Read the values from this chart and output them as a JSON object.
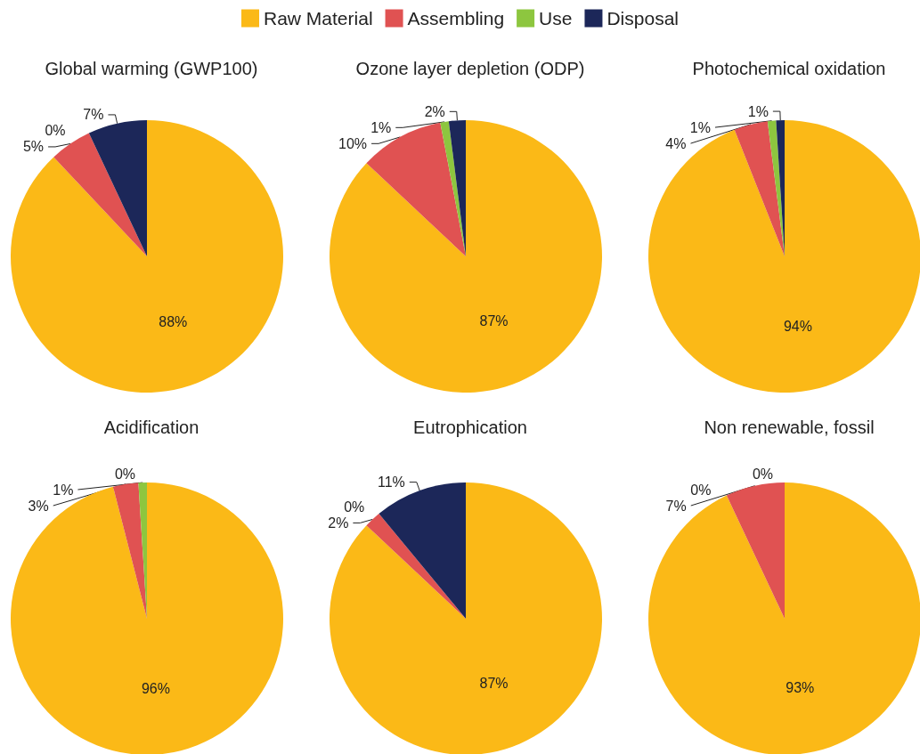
{
  "chart_data": [
    {
      "type": "pie",
      "title": "Global warming (GWP100)",
      "categories": [
        "Raw Material",
        "Assembling",
        "Use",
        "Disposal"
      ],
      "values": [
        88,
        5,
        0,
        7
      ],
      "value_labels": [
        "88%",
        "5%",
        "0%",
        "7%"
      ],
      "colors": [
        "#fbb917",
        "#e05252",
        "#8dc63f",
        "#1c2759"
      ],
      "legend": "top"
    },
    {
      "type": "pie",
      "title": "Ozone layer depletion (ODP)",
      "categories": [
        null,
        null,
        null,
        null
      ],
      "values": [
        87,
        10,
        1,
        2
      ],
      "value_labels": [
        "87%",
        "10%",
        "1%",
        "2%"
      ],
      "colors": [
        "#fbb917",
        "#e05252",
        "#8dc63f",
        "#1c2759"
      ]
    },
    {
      "type": "pie",
      "title": "Photochemical oxidation",
      "categories": [
        null,
        null,
        null,
        null
      ],
      "values": [
        94,
        4,
        1,
        1
      ],
      "value_labels": [
        "94%",
        "4%",
        "1%",
        "1%"
      ],
      "colors": [
        "#fbb917",
        "#e05252",
        "#8dc63f",
        "#1c2759"
      ]
    },
    {
      "type": "pie",
      "title": "Acidification",
      "categories": [
        null,
        null,
        null,
        null
      ],
      "values": [
        96,
        3,
        1,
        0
      ],
      "value_labels": [
        "96%",
        "3%",
        "1%",
        "0%"
      ],
      "colors": [
        "#fbb917",
        "#e05252",
        "#8dc63f",
        "#1c2759"
      ]
    },
    {
      "type": "pie",
      "title": "Eutrophication",
      "categories": [
        null,
        null,
        null,
        null
      ],
      "values": [
        87,
        2,
        0,
        11
      ],
      "value_labels": [
        "87%",
        "2%",
        "0%",
        "11%"
      ],
      "colors": [
        "#fbb917",
        "#e05252",
        "#8dc63f",
        "#1c2759"
      ]
    },
    {
      "type": "pie",
      "title": "Non renewable, fossil",
      "categories": [
        null,
        null,
        null,
        null
      ],
      "values": [
        93,
        7,
        0,
        0
      ],
      "value_labels": [
        "93%",
        "7%",
        "0%",
        "0%"
      ],
      "colors": [
        "#fbb917",
        "#e05252",
        "#8dc63f",
        "#1c2759"
      ]
    }
  ]
}
